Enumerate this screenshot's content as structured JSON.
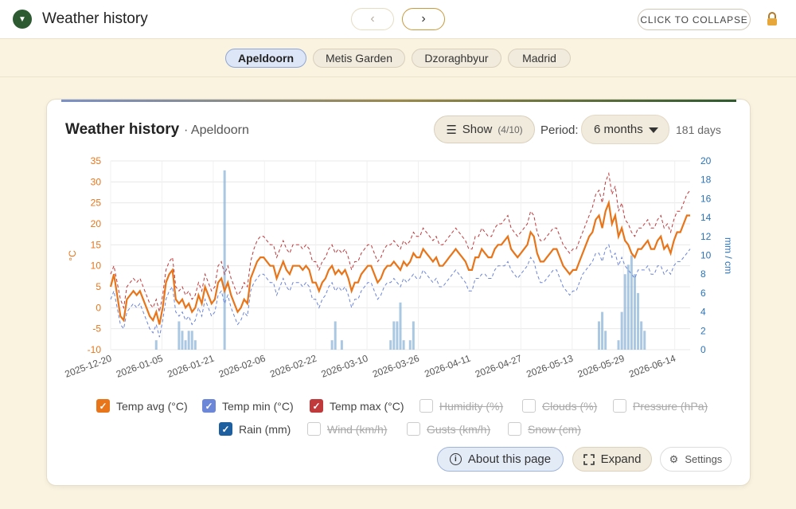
{
  "app": {
    "title": "Weather history",
    "collapse_label": "CLICK TO COLLAPSE",
    "prev_icon": "‹",
    "next_icon": "›"
  },
  "locations": [
    "Apeldoorn",
    "Metis Garden",
    "Dzoraghbyur",
    "Madrid"
  ],
  "active_location": "Apeldoorn",
  "card": {
    "title": "Weather history",
    "subtitle": "· Apeldoorn",
    "show_label": "Show",
    "show_count": "(4/10)",
    "period_label": "Period:",
    "period_value": "6 months",
    "days": "181 days"
  },
  "legend": [
    {
      "label": "Temp avg (°C)",
      "checked": true,
      "color": "#e8751a"
    },
    {
      "label": "Temp min (°C)",
      "checked": true,
      "color": "#6c86d8"
    },
    {
      "label": "Temp max (°C)",
      "checked": true,
      "color": "#c0393b"
    },
    {
      "label": "Humidity (%)",
      "checked": false,
      "color": "#cccccc"
    },
    {
      "label": "Clouds (%)",
      "checked": false,
      "color": "#cccccc"
    },
    {
      "label": "Pressure (hPa)",
      "checked": false,
      "color": "#cccccc"
    },
    {
      "label": "Rain (mm)",
      "checked": true,
      "color": "#1e5fa0"
    },
    {
      "label": "Wind (km/h)",
      "checked": false,
      "color": "#cccccc"
    },
    {
      "label": "Gusts (km/h)",
      "checked": false,
      "color": "#cccccc"
    },
    {
      "label": "Snow (cm)",
      "checked": false,
      "color": "#cccccc"
    }
  ],
  "buttons": {
    "about": "About this page",
    "expand": "Expand",
    "settings": "Settings"
  },
  "chart_data": {
    "type": "line",
    "left_axis": {
      "label": "°C",
      "ticks": [
        35,
        30,
        25,
        20,
        15,
        10,
        5,
        0,
        -5,
        -10
      ],
      "ylim": [
        -10,
        35
      ],
      "color": "#e8751a"
    },
    "right_axis": {
      "label": "mm / cm",
      "ticks": [
        20,
        18,
        16,
        14,
        12,
        10,
        8,
        6,
        4,
        2,
        0
      ],
      "ylim": [
        0,
        20
      ],
      "color": "#2a73b8"
    },
    "x_ticks": [
      "2025-12-20",
      "2026-01-05",
      "2026-01-21",
      "2026-02-06",
      "2026-02-22",
      "2026-03-10",
      "2026-03-26",
      "2026-04-11",
      "2026-04-27",
      "2026-05-13",
      "2026-05-29",
      "2026-06-14"
    ],
    "grid": true,
    "series": [
      {
        "name": "Temp avg (°C)",
        "style": "solid",
        "color": "#e8751a",
        "values": [
          5,
          8,
          3,
          -2,
          -3,
          2,
          3,
          4,
          3,
          4,
          2,
          0,
          -2,
          -3,
          -1,
          -4,
          0,
          6,
          8,
          9,
          2,
          1,
          2,
          0,
          1,
          -1,
          0,
          3,
          1,
          5,
          3,
          1,
          2,
          6,
          7,
          4,
          6,
          3,
          1,
          -1,
          0,
          2,
          1,
          7,
          9,
          11,
          12,
          12,
          11,
          10,
          10,
          7,
          9,
          11,
          9,
          8,
          10,
          10,
          10,
          9,
          10,
          9,
          6,
          6,
          4,
          6,
          7,
          9,
          10,
          8,
          9,
          8,
          9,
          7,
          4,
          6,
          6,
          8,
          9,
          10,
          10,
          8,
          6,
          7,
          9,
          10,
          10,
          11,
          10,
          9,
          11,
          10,
          11,
          13,
          12,
          12,
          14,
          13,
          12,
          11,
          12,
          10,
          10,
          11,
          12,
          13,
          14,
          13,
          12,
          11,
          9,
          9,
          12,
          12,
          14,
          13,
          12,
          12,
          14,
          15,
          15,
          16,
          17,
          14,
          13,
          12,
          13,
          14,
          15,
          18,
          17,
          13,
          11,
          11,
          12,
          13,
          14,
          14,
          12,
          10,
          9,
          8,
          9,
          9,
          11,
          13,
          15,
          17,
          18,
          21,
          22,
          19,
          23,
          25,
          20,
          22,
          17,
          19,
          16,
          15,
          13,
          12,
          14,
          14,
          15,
          16,
          14,
          14,
          16,
          17,
          14,
          15,
          13,
          16,
          18,
          18,
          20,
          22,
          22
        ]
      },
      {
        "name": "Temp min (°C)",
        "style": "dashed",
        "color": "#6c86d8",
        "values": [
          2,
          4,
          0,
          -4,
          -5,
          -1,
          0,
          1,
          0,
          1,
          -1,
          -3,
          -5,
          -6,
          -4,
          -7,
          -3,
          2,
          4,
          5,
          -1,
          -2,
          -1,
          -3,
          -2,
          -4,
          -3,
          0,
          -2,
          2,
          0,
          -2,
          -1,
          3,
          4,
          1,
          3,
          0,
          -2,
          -4,
          -3,
          -1,
          -2,
          4,
          6,
          7,
          8,
          8,
          7,
          6,
          6,
          3,
          5,
          7,
          5,
          4,
          6,
          6,
          6,
          5,
          6,
          5,
          2,
          2,
          0,
          2,
          3,
          5,
          6,
          4,
          5,
          4,
          5,
          3,
          0,
          2,
          2,
          4,
          5,
          6,
          6,
          4,
          2,
          3,
          5,
          6,
          6,
          7,
          6,
          5,
          7,
          6,
          7,
          8,
          7,
          7,
          9,
          8,
          7,
          6,
          7,
          5,
          5,
          6,
          7,
          8,
          9,
          8,
          7,
          6,
          4,
          4,
          7,
          7,
          8,
          8,
          7,
          7,
          9,
          10,
          10,
          10,
          11,
          9,
          8,
          7,
          8,
          9,
          10,
          12,
          11,
          8,
          6,
          6,
          7,
          8,
          9,
          9,
          7,
          5,
          4,
          3,
          4,
          4,
          6,
          8,
          9,
          10,
          11,
          13,
          13,
          11,
          14,
          15,
          12,
          13,
          10,
          12,
          10,
          9,
          8,
          7,
          9,
          9,
          9,
          10,
          8,
          8,
          10,
          10,
          8,
          9,
          8,
          10,
          11,
          11,
          12,
          13,
          14
        ]
      },
      {
        "name": "Temp max (°C)",
        "style": "dashed",
        "color": "#c0393b",
        "values": [
          8,
          10,
          6,
          2,
          0,
          5,
          6,
          7,
          6,
          7,
          5,
          3,
          1,
          0,
          2,
          -1,
          3,
          9,
          11,
          12,
          5,
          4,
          5,
          3,
          4,
          2,
          3,
          6,
          4,
          8,
          6,
          4,
          5,
          10,
          11,
          8,
          10,
          7,
          5,
          3,
          4,
          6,
          5,
          11,
          14,
          16,
          17,
          17,
          16,
          15,
          15,
          12,
          14,
          16,
          14,
          13,
          15,
          15,
          15,
          14,
          15,
          14,
          11,
          11,
          9,
          11,
          12,
          14,
          15,
          13,
          14,
          13,
          14,
          12,
          9,
          11,
          11,
          13,
          14,
          15,
          15,
          13,
          11,
          12,
          14,
          15,
          15,
          16,
          15,
          14,
          16,
          15,
          16,
          18,
          17,
          17,
          19,
          18,
          17,
          16,
          17,
          15,
          15,
          16,
          17,
          18,
          19,
          18,
          17,
          16,
          14,
          14,
          17,
          17,
          19,
          18,
          17,
          17,
          19,
          20,
          20,
          21,
          22,
          19,
          18,
          17,
          18,
          19,
          20,
          23,
          22,
          18,
          16,
          16,
          17,
          18,
          19,
          19,
          17,
          15,
          14,
          13,
          14,
          14,
          16,
          18,
          20,
          22,
          24,
          27,
          28,
          25,
          30,
          32,
          27,
          29,
          23,
          25,
          21,
          20,
          18,
          17,
          19,
          19,
          20,
          21,
          19,
          19,
          21,
          22,
          19,
          20,
          18,
          21,
          23,
          23,
          25,
          27,
          28
        ]
      },
      {
        "name": "Rain (mm)",
        "style": "bar",
        "color": "#8fb5d9",
        "values": [
          0,
          0,
          0,
          0,
          0,
          0,
          0,
          0,
          0,
          0,
          0,
          0,
          0,
          0,
          1,
          0,
          0,
          0,
          0,
          0,
          0,
          3,
          2,
          1,
          2,
          2,
          1,
          0,
          0,
          0,
          0,
          0,
          0,
          0,
          0,
          19,
          0,
          0,
          0,
          0,
          0,
          0,
          0,
          0,
          0,
          0,
          0,
          0,
          0,
          0,
          0,
          0,
          0,
          0,
          0,
          0,
          0,
          0,
          0,
          0,
          0,
          0,
          0,
          0,
          0,
          0,
          0,
          0,
          1,
          3,
          0,
          1,
          0,
          0,
          0,
          0,
          0,
          0,
          0,
          0,
          0,
          0,
          0,
          0,
          0,
          0,
          1,
          3,
          3,
          5,
          1,
          0,
          1,
          3,
          0,
          0,
          0,
          0,
          0,
          0,
          0,
          0,
          0,
          0,
          0,
          0,
          0,
          0,
          0,
          0,
          0,
          0,
          0,
          0,
          0,
          0,
          0,
          0,
          0,
          0,
          0,
          0,
          0,
          0,
          0,
          0,
          0,
          0,
          0,
          0,
          0,
          0,
          0,
          0,
          0,
          0,
          0,
          0,
          0,
          0,
          0,
          0,
          0,
          0,
          0,
          0,
          0,
          0,
          0,
          0,
          3,
          4,
          2,
          0,
          0,
          0,
          1,
          4,
          8,
          9,
          10,
          8,
          6,
          3,
          2,
          0,
          0,
          0,
          0,
          0,
          0,
          0,
          0,
          0,
          0,
          0,
          0,
          0,
          0,
          0,
          0,
          0,
          0,
          0,
          0,
          0,
          0,
          0
        ]
      }
    ]
  }
}
